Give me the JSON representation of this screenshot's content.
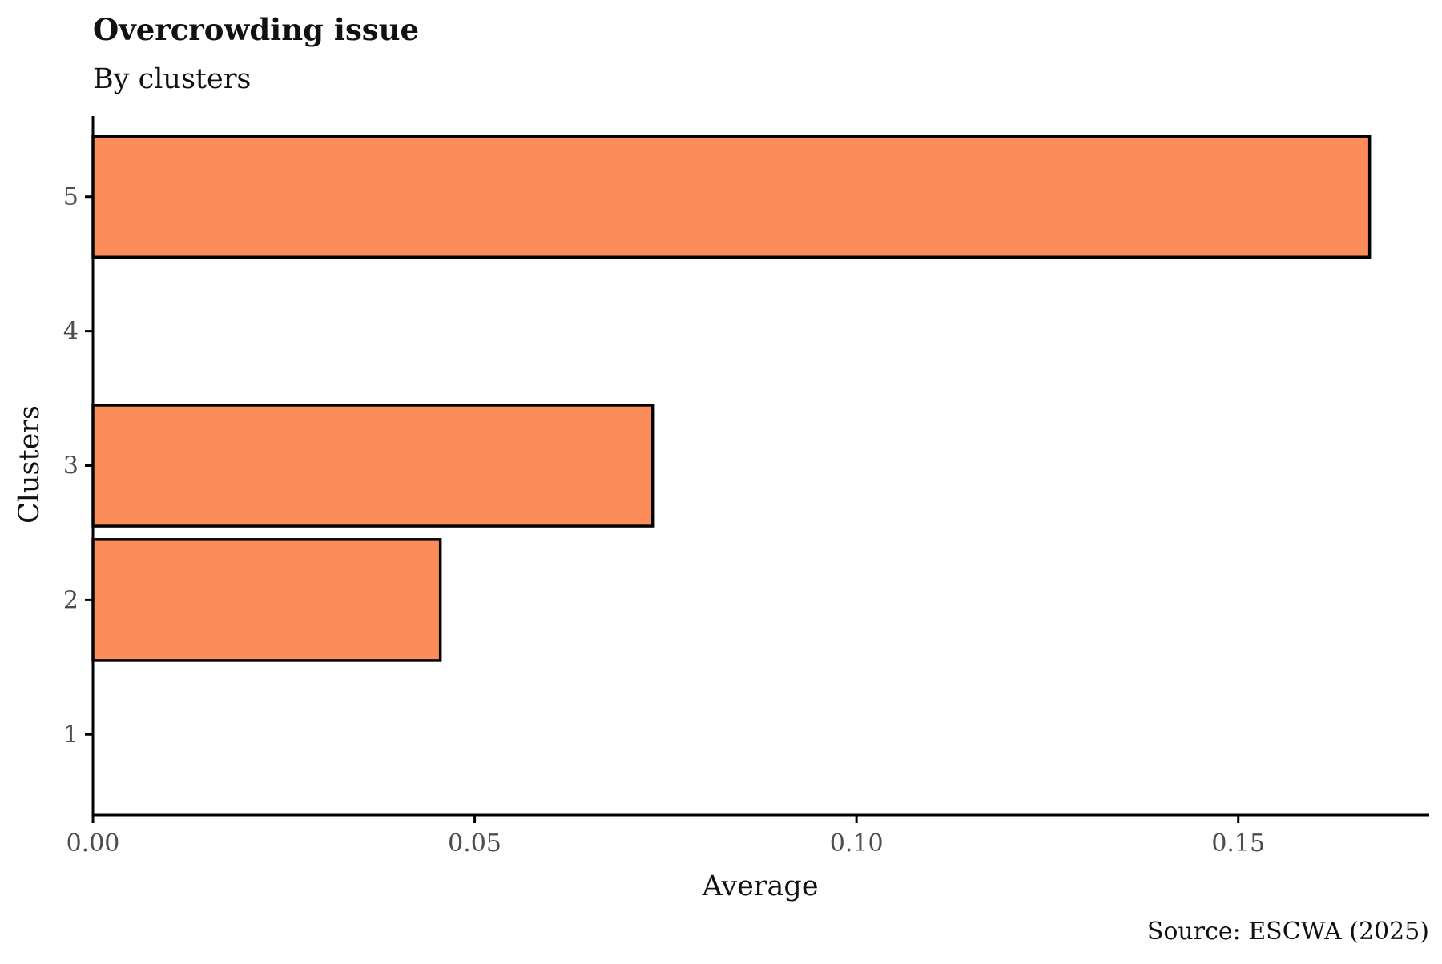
{
  "chart_data": {
    "type": "bar",
    "orientation": "horizontal",
    "title": "Overcrowding issue",
    "subtitle": "By clusters",
    "xlabel": "Average",
    "ylabel": "Clusters",
    "caption": "Source: ESCWA (2025)",
    "categories": [
      "1",
      "2",
      "3",
      "4",
      "5"
    ],
    "values": [
      0,
      0.0455,
      0.0733,
      0,
      0.1672
    ],
    "xlim": [
      0,
      0.175
    ],
    "xticks": [
      0,
      0.05,
      0.1,
      0.15
    ],
    "xtick_labels": [
      "0.00",
      "0.05",
      "0.10",
      "0.15"
    ],
    "grid": false,
    "colors": {
      "bar_fill": "#fc8d5b",
      "bar_stroke": "#000000",
      "axis": "#000000",
      "tick_text": "#4d4d4d"
    }
  }
}
